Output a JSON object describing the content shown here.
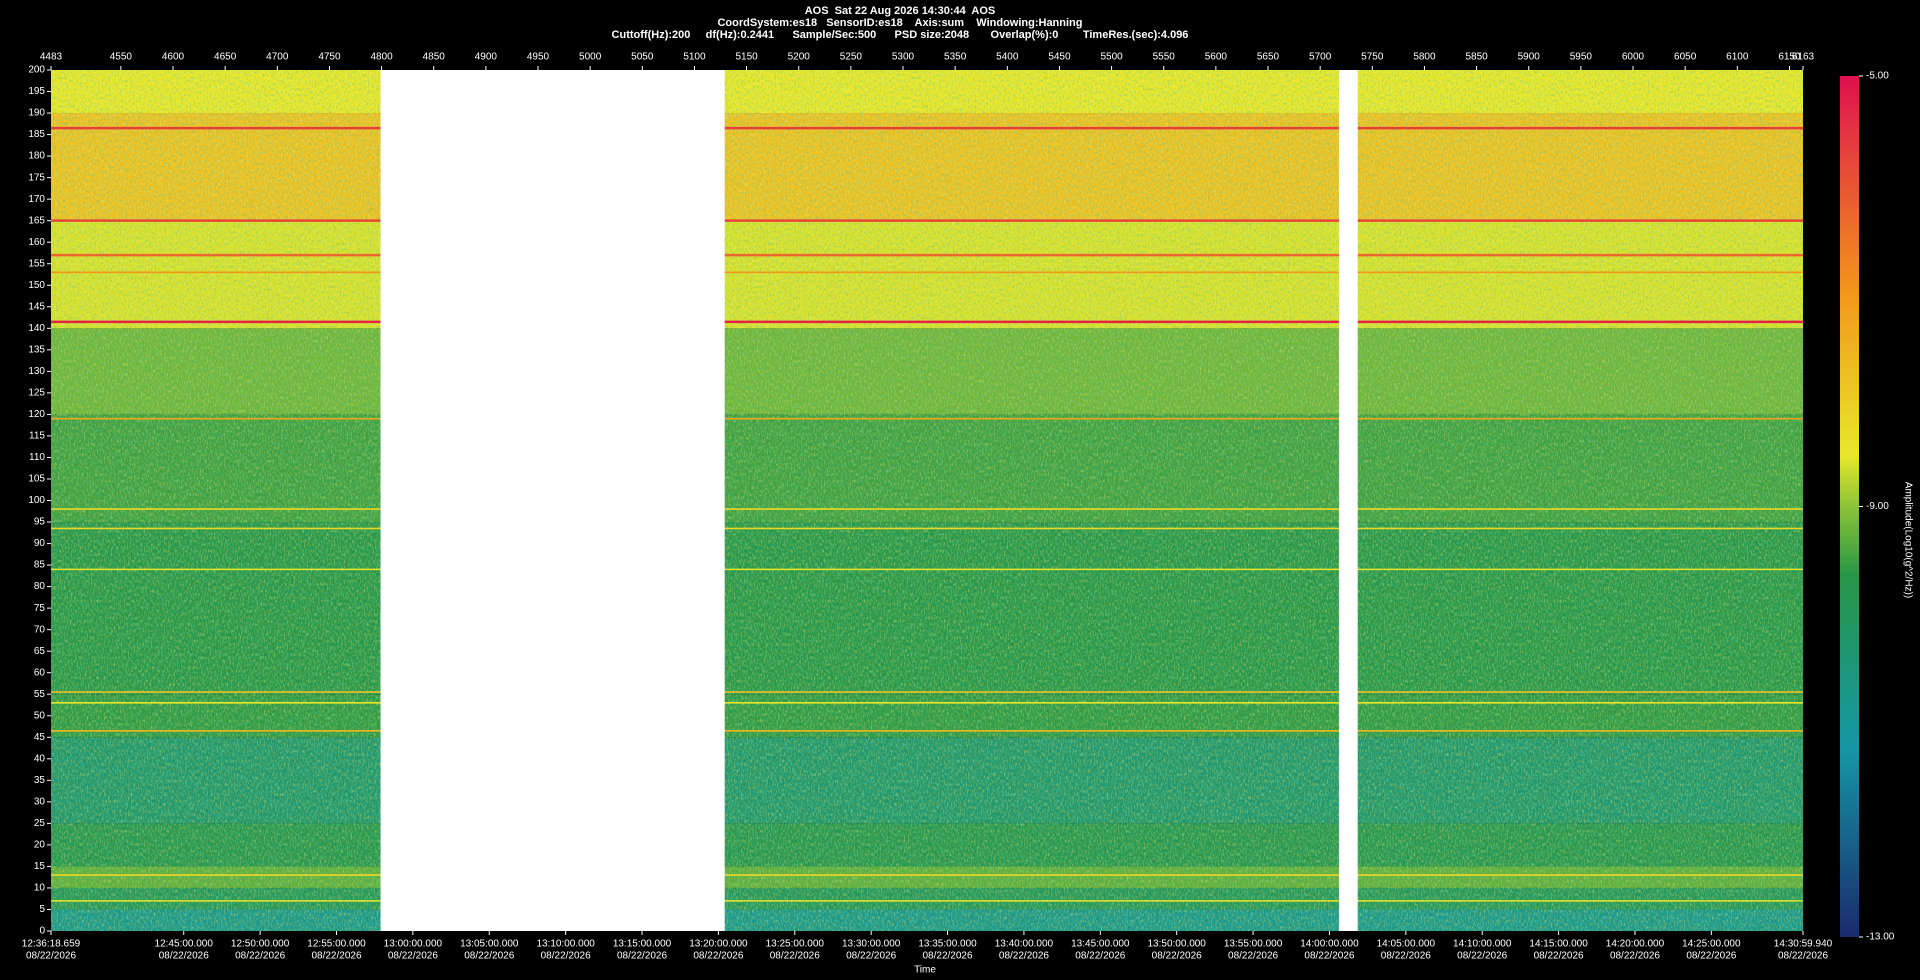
{
  "chart_data": {
    "type": "spectrogram",
    "title": "AOS  Sat 22 Aug 2026 14:30:44  AOS",
    "subtitle_lines": [
      "CoordSystem:es18   SensorID:es18    Axis:sum    Windowing:Hanning",
      "Cuttoff(Hz):200     df(Hz):0.2441      Sample/Sec:500      PSD size:2048       Overlap(%):0        TimeRes.(sec):4.096"
    ],
    "xlabel": "Time",
    "colorbar_label": "Amplitude(Log10(g^2/Hz))",
    "xlim": [
      4483,
      6163
    ],
    "xticks": [
      4483,
      4550,
      4600,
      4650,
      4700,
      4750,
      4800,
      4850,
      4900,
      4950,
      5000,
      5050,
      5100,
      5150,
      5200,
      5250,
      5300,
      5350,
      5400,
      5450,
      5500,
      5550,
      5600,
      5650,
      5700,
      5750,
      5800,
      5850,
      5900,
      5950,
      6000,
      6050,
      6100,
      6150,
      6163
    ],
    "ylim": [
      0,
      200
    ],
    "yticks": [
      0,
      5,
      10,
      15,
      20,
      25,
      30,
      35,
      40,
      45,
      50,
      55,
      60,
      65,
      70,
      75,
      80,
      85,
      90,
      95,
      100,
      105,
      110,
      115,
      120,
      125,
      130,
      135,
      140,
      145,
      150,
      155,
      160,
      165,
      170,
      175,
      180,
      185,
      190,
      195,
      200
    ],
    "timelim": [
      45378.659,
      52259.94
    ],
    "time_ticks": [
      {
        "value": 45378.659,
        "label": "12:36:18.659",
        "date": "08/22/2026"
      },
      {
        "value": 45900,
        "label": "12:45:00.000",
        "date": "08/22/2026"
      },
      {
        "value": 46200,
        "label": "12:50:00.000",
        "date": "08/22/2026"
      },
      {
        "value": 46500,
        "label": "12:55:00.000",
        "date": "08/22/2026"
      },
      {
        "value": 46800,
        "label": "13:00:00.000",
        "date": "08/22/2026"
      },
      {
        "value": 47100,
        "label": "13:05:00.000",
        "date": "08/22/2026"
      },
      {
        "value": 47400,
        "label": "13:10:00.000",
        "date": "08/22/2026"
      },
      {
        "value": 47700,
        "label": "13:15:00.000",
        "date": "08/22/2026"
      },
      {
        "value": 48000,
        "label": "13:20:00.000",
        "date": "08/22/2026"
      },
      {
        "value": 48300,
        "label": "13:25:00.000",
        "date": "08/22/2026"
      },
      {
        "value": 48600,
        "label": "13:30:00.000",
        "date": "08/22/2026"
      },
      {
        "value": 48900,
        "label": "13:35:00.000",
        "date": "08/22/2026"
      },
      {
        "value": 49200,
        "label": "13:40:00.000",
        "date": "08/22/2026"
      },
      {
        "value": 49500,
        "label": "13:45:00.000",
        "date": "08/22/2026"
      },
      {
        "value": 49800,
        "label": "13:50:00.000",
        "date": "08/22/2026"
      },
      {
        "value": 50100,
        "label": "13:55:00.000",
        "date": "08/22/2026"
      },
      {
        "value": 50400,
        "label": "14:00:00.000",
        "date": "08/22/2026"
      },
      {
        "value": 50700,
        "label": "14:05:00.000",
        "date": "08/22/2026"
      },
      {
        "value": 51000,
        "label": "14:10:00.000",
        "date": "08/22/2026"
      },
      {
        "value": 51300,
        "label": "14:15:00.000",
        "date": "08/22/2026"
      },
      {
        "value": 51600,
        "label": "14:20:00.000",
        "date": "08/22/2026"
      },
      {
        "value": 51900,
        "label": "14:25:00.000",
        "date": "08/22/2026"
      },
      {
        "value": 52259.94,
        "label": "14:30:59.940",
        "date": "08/22/2026"
      }
    ],
    "clim": [
      -13,
      -5
    ],
    "cticks": [
      {
        "value": -5,
        "label": "-5.00"
      },
      {
        "value": -9,
        "label": "-9.00"
      },
      {
        "value": -13,
        "label": "-13.00"
      }
    ],
    "gaps": [
      [
        4799,
        5129
      ],
      [
        5718,
        5736
      ]
    ],
    "bands": [
      {
        "from": 0,
        "to": 5,
        "amp": -10.8
      },
      {
        "from": 5,
        "to": 10,
        "amp": -10.0
      },
      {
        "from": 10,
        "to": 15,
        "amp": -9.3
      },
      {
        "from": 15,
        "to": 25,
        "amp": -9.8
      },
      {
        "from": 25,
        "to": 45,
        "amp": -10.3
      },
      {
        "from": 45,
        "to": 55,
        "amp": -9.6
      },
      {
        "from": 55,
        "to": 95,
        "amp": -9.7
      },
      {
        "from": 95,
        "to": 120,
        "amp": -9.5
      },
      {
        "from": 120,
        "to": 140,
        "amp": -9.2
      },
      {
        "from": 140,
        "to": 165,
        "amp": -8.6
      },
      {
        "from": 165,
        "to": 190,
        "amp": -7.8
      },
      {
        "from": 190,
        "to": 200,
        "amp": -8.5
      }
    ],
    "tones": [
      {
        "freq": 186.5,
        "amp": -5.7
      },
      {
        "freq": 165,
        "amp": -5.8
      },
      {
        "freq": 157,
        "amp": -6.3
      },
      {
        "freq": 153,
        "amp": -7
      },
      {
        "freq": 141.5,
        "amp": -5.3
      },
      {
        "freq": 119,
        "amp": -7.3
      },
      {
        "freq": 98,
        "amp": -8.2
      },
      {
        "freq": 93.5,
        "amp": -8.2
      },
      {
        "freq": 84,
        "amp": -8.5
      },
      {
        "freq": 55.5,
        "amp": -7.8
      },
      {
        "freq": 53,
        "amp": -8.5
      },
      {
        "freq": 46.5,
        "amp": -7.6
      },
      {
        "freq": 13,
        "amp": -8.2
      },
      {
        "freq": 7,
        "amp": -8.5
      }
    ]
  }
}
